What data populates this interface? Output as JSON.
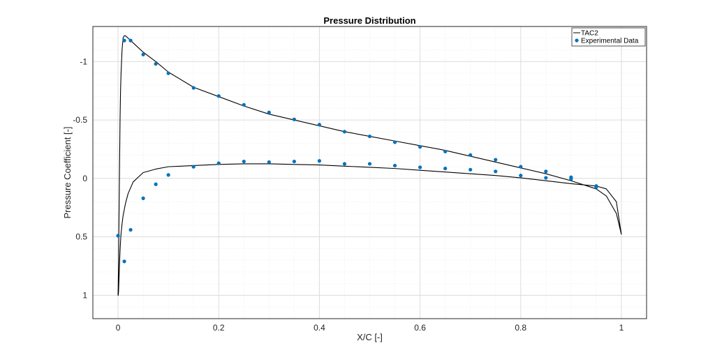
{
  "chart_data": {
    "type": "line",
    "title": "Pressure Distribution",
    "xlabel": "X/C [-]",
    "ylabel": "Pressure Coefficient [-]",
    "xlim": [
      -0.05,
      1.05
    ],
    "ylim": [
      1.2,
      -1.3
    ],
    "y_reversed": true,
    "grid": true,
    "minor_grid": true,
    "legend_position": "top-right",
    "x_ticks": [
      0,
      0.2,
      0.4,
      0.6,
      0.8,
      1
    ],
    "x_tick_labels": [
      "0",
      "0.2",
      "0.4",
      "0.6",
      "0.8",
      "1"
    ],
    "y_ticks": [
      -1,
      -0.5,
      0,
      0.5,
      1
    ],
    "y_tick_labels": [
      "-1",
      "-0.5",
      "0",
      "0.5",
      "1"
    ],
    "series": [
      {
        "name": "TAC2",
        "kind": "line",
        "color": "#000000",
        "x": [
          1.0,
          0.99,
          0.97,
          0.95,
          0.9,
          0.85,
          0.8,
          0.75,
          0.7,
          0.65,
          0.6,
          0.55,
          0.5,
          0.45,
          0.4,
          0.35,
          0.3,
          0.25,
          0.2,
          0.15,
          0.1,
          0.075,
          0.05,
          0.035,
          0.025,
          0.02,
          0.015,
          0.012,
          0.01,
          0.008,
          0.006,
          0.005,
          0.004,
          0.003,
          0.002,
          0.001,
          0.0,
          0.0005,
          0.001,
          0.002,
          0.003,
          0.004,
          0.005,
          0.006,
          0.008,
          0.01,
          0.015,
          0.02,
          0.03,
          0.05,
          0.075,
          0.1,
          0.15,
          0.2,
          0.25,
          0.3,
          0.35,
          0.4,
          0.45,
          0.5,
          0.55,
          0.6,
          0.65,
          0.7,
          0.75,
          0.8,
          0.85,
          0.9,
          0.95,
          0.97,
          0.99,
          1.0
        ],
        "y": [
          0.48,
          0.3,
          0.15,
          0.09,
          0.02,
          -0.04,
          -0.09,
          -0.14,
          -0.19,
          -0.24,
          -0.28,
          -0.32,
          -0.36,
          -0.4,
          -0.45,
          -0.5,
          -0.55,
          -0.62,
          -0.7,
          -0.78,
          -0.91,
          -1.0,
          -1.08,
          -1.14,
          -1.18,
          -1.2,
          -1.22,
          -1.22,
          -1.2,
          -1.1,
          -0.9,
          -0.75,
          -0.5,
          -0.1,
          0.3,
          0.75,
          1.0,
          1.0,
          0.97,
          0.85,
          0.72,
          0.62,
          0.54,
          0.47,
          0.39,
          0.32,
          0.21,
          0.13,
          0.03,
          -0.05,
          -0.08,
          -0.1,
          -0.11,
          -0.12,
          -0.125,
          -0.125,
          -0.12,
          -0.115,
          -0.105,
          -0.095,
          -0.085,
          -0.07,
          -0.055,
          -0.04,
          -0.025,
          -0.005,
          0.02,
          0.045,
          0.065,
          0.09,
          0.2,
          0.48
        ]
      },
      {
        "name": "Experimental Data",
        "kind": "scatter",
        "color": "#0072BD",
        "x": [
          0,
          0.0125,
          0.025,
          0.05,
          0.075,
          0.1,
          0.15,
          0.2,
          0.25,
          0.3,
          0.35,
          0.4,
          0.45,
          0.5,
          0.55,
          0.6,
          0.65,
          0.7,
          0.75,
          0.8,
          0.85,
          0.9,
          0.95,
          0.0125,
          0.025,
          0.05,
          0.075,
          0.1,
          0.15,
          0.2,
          0.25,
          0.3,
          0.35,
          0.4,
          0.45,
          0.5,
          0.55,
          0.6,
          0.65,
          0.7,
          0.75,
          0.8,
          0.85,
          0.9,
          0.95
        ],
        "y": [
          0.49,
          0.71,
          0.44,
          0.17,
          0.05,
          -0.03,
          -0.1,
          -0.13,
          -0.145,
          -0.14,
          -0.145,
          -0.15,
          -0.125,
          -0.125,
          -0.11,
          -0.095,
          -0.085,
          -0.075,
          -0.06,
          -0.025,
          -0.005,
          0.005,
          0.065,
          -1.18,
          -1.18,
          -1.06,
          -0.98,
          -0.9,
          -0.775,
          -0.705,
          -0.63,
          -0.565,
          -0.505,
          -0.46,
          -0.4,
          -0.36,
          -0.31,
          -0.27,
          -0.23,
          -0.2,
          -0.16,
          -0.1,
          -0.06,
          -0.01,
          0.075
        ]
      }
    ]
  }
}
